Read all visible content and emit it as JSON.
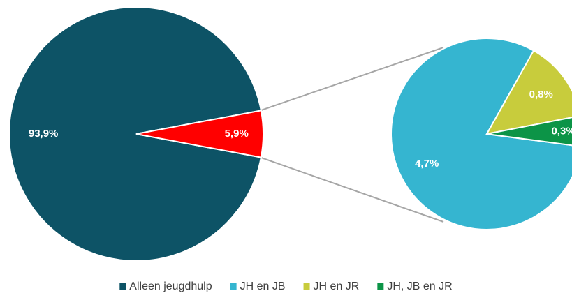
{
  "chart_data": {
    "type": "pie",
    "categories": [
      "Alleen jeugdhulp",
      null
    ],
    "values": [
      93.9,
      5.9
    ],
    "value_labels": [
      "93,9%",
      "5,9%"
    ],
    "colors": [
      "#0d5366",
      "#ff0000"
    ],
    "sub_pie": {
      "categories": [
        "JH en JB",
        "JH en JR",
        "JH, JB en JR"
      ],
      "values": [
        4.7,
        0.8,
        0.3
      ],
      "value_labels": [
        "4,7%",
        "0,8%",
        "0,3%"
      ],
      "colors": [
        "#35b5d0",
        "#c8cc3c",
        "#0c9447"
      ]
    }
  }
}
